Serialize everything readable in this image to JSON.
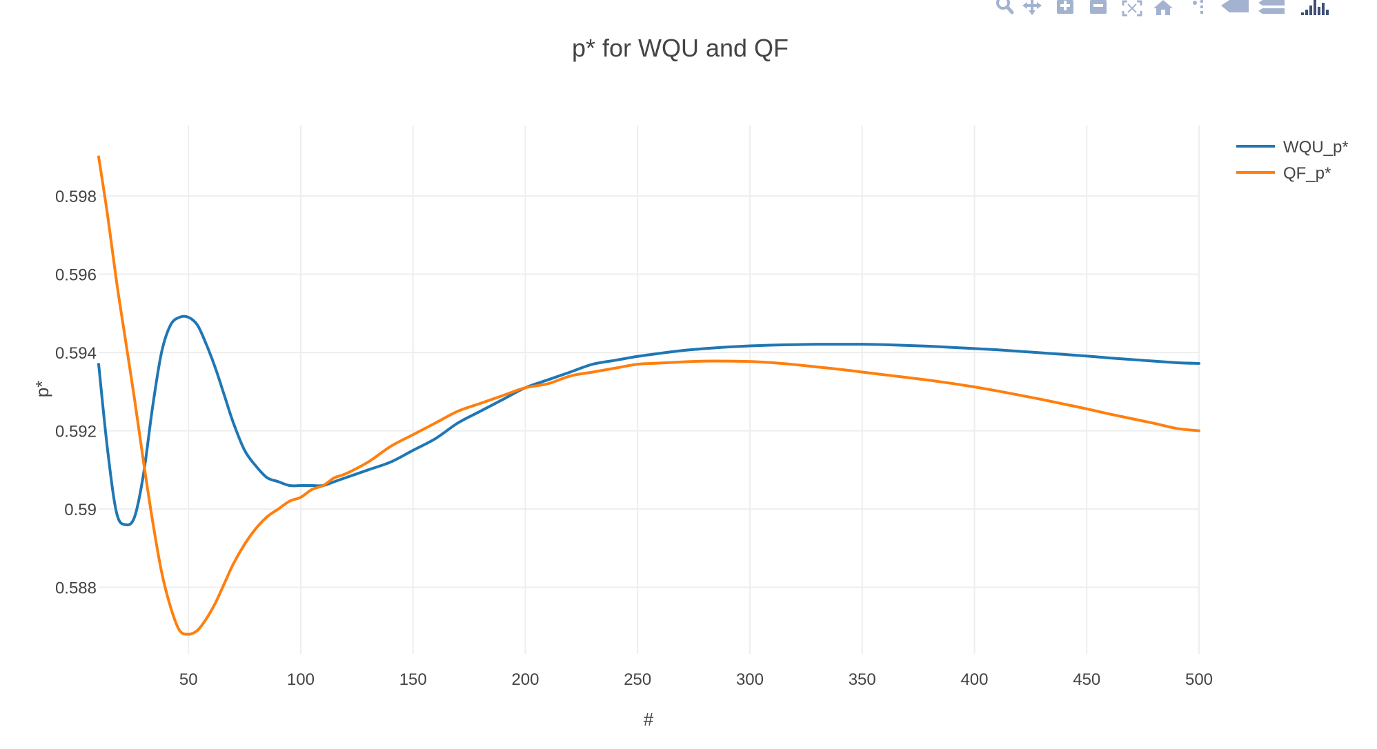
{
  "modebar": {
    "buttons": [
      {
        "name": "zoom-icon"
      },
      {
        "name": "pan-icon"
      },
      {
        "name": "zoom-in-icon"
      },
      {
        "name": "zoom-out-icon"
      },
      {
        "name": "autoscale-icon"
      },
      {
        "name": "reset-axes-icon"
      },
      {
        "name": "spike-lines-icon"
      },
      {
        "name": "hover-closest-icon"
      },
      {
        "name": "hover-compare-icon"
      },
      {
        "name": "plotly-logo-icon"
      }
    ],
    "icon_color": "#A3B3CF",
    "logo_color": "#3F4F75"
  },
  "chart_data": {
    "type": "line",
    "title": "p* for WQU and QF",
    "xlabel": "#",
    "ylabel": "p*",
    "xlim": [
      10,
      500
    ],
    "ylim": [
      0.5863,
      0.5998
    ],
    "x_ticks": [
      50,
      100,
      150,
      200,
      250,
      300,
      350,
      400,
      450,
      500
    ],
    "x_tick_labels": [
      "50",
      "100",
      "150",
      "200",
      "250",
      "300",
      "350",
      "400",
      "450",
      "500"
    ],
    "y_ticks": [
      0.588,
      0.59,
      0.592,
      0.594,
      0.596,
      0.598
    ],
    "y_tick_labels": [
      "0.588",
      "0.59",
      "0.592",
      "0.594",
      "0.596",
      "0.598"
    ],
    "grid": true,
    "legend_position": "top-right",
    "series": [
      {
        "name": "WQU_p*",
        "color": "#1f77b4",
        "x": [
          10,
          14,
          18,
          22,
          26,
          30,
          34,
          38,
          42,
          46,
          50,
          54,
          58,
          62,
          66,
          70,
          75,
          80,
          85,
          90,
          95,
          100,
          105,
          110,
          115,
          120,
          130,
          140,
          150,
          160,
          170,
          180,
          190,
          200,
          210,
          220,
          230,
          240,
          250,
          260,
          270,
          280,
          290,
          300,
          310,
          320,
          330,
          340,
          350,
          360,
          370,
          380,
          390,
          400,
          410,
          420,
          430,
          440,
          450,
          460,
          470,
          480,
          490,
          500
        ],
        "y": [
          0.5937,
          0.5915,
          0.5899,
          0.5896,
          0.5898,
          0.5909,
          0.5926,
          0.594,
          0.5947,
          0.5949,
          0.5949,
          0.5947,
          0.5942,
          0.5936,
          0.5929,
          0.5922,
          0.5915,
          0.5911,
          0.5908,
          0.5907,
          0.5906,
          0.5906,
          0.5906,
          0.5906,
          0.5907,
          0.5908,
          0.591,
          0.5912,
          0.5915,
          0.5918,
          0.5922,
          0.5925,
          0.5928,
          0.5931,
          0.5933,
          0.5935,
          0.5937,
          0.5938,
          0.5939,
          0.59398,
          0.59405,
          0.5941,
          0.59414,
          0.59417,
          0.59419,
          0.5942,
          0.59421,
          0.59421,
          0.59421,
          0.5942,
          0.59418,
          0.59416,
          0.59413,
          0.5941,
          0.59407,
          0.59403,
          0.59399,
          0.59395,
          0.59391,
          0.59386,
          0.59382,
          0.59378,
          0.59374,
          0.59372
        ]
      },
      {
        "name": "QF_p*",
        "color": "#ff7f0e",
        "x": [
          10,
          14,
          18,
          22,
          26,
          30,
          34,
          38,
          42,
          46,
          50,
          54,
          58,
          62,
          66,
          70,
          75,
          80,
          85,
          90,
          95,
          100,
          105,
          110,
          115,
          120,
          130,
          140,
          150,
          160,
          170,
          180,
          190,
          200,
          210,
          220,
          230,
          240,
          250,
          260,
          270,
          280,
          290,
          300,
          310,
          320,
          330,
          340,
          350,
          360,
          370,
          380,
          390,
          400,
          410,
          420,
          430,
          440,
          450,
          460,
          470,
          480,
          490,
          500
        ],
        "y": [
          0.599,
          0.5975,
          0.5958,
          0.5943,
          0.5928,
          0.5912,
          0.5897,
          0.5884,
          0.5875,
          0.5869,
          0.5868,
          0.5869,
          0.5872,
          0.5876,
          0.5881,
          0.5886,
          0.5891,
          0.5895,
          0.5898,
          0.59,
          0.5902,
          0.5903,
          0.5905,
          0.5906,
          0.5908,
          0.5909,
          0.5912,
          0.5916,
          0.5919,
          0.5922,
          0.5925,
          0.5927,
          0.5929,
          0.5931,
          0.5932,
          0.5934,
          0.5935,
          0.5936,
          0.5937,
          0.59373,
          0.59376,
          0.59378,
          0.59378,
          0.59377,
          0.59374,
          0.59369,
          0.59363,
          0.59357,
          0.5935,
          0.59343,
          0.59336,
          0.59329,
          0.59321,
          0.59312,
          0.59302,
          0.59291,
          0.5928,
          0.59268,
          0.59256,
          0.59243,
          0.59231,
          0.59219,
          0.59206,
          0.592
        ]
      }
    ]
  }
}
